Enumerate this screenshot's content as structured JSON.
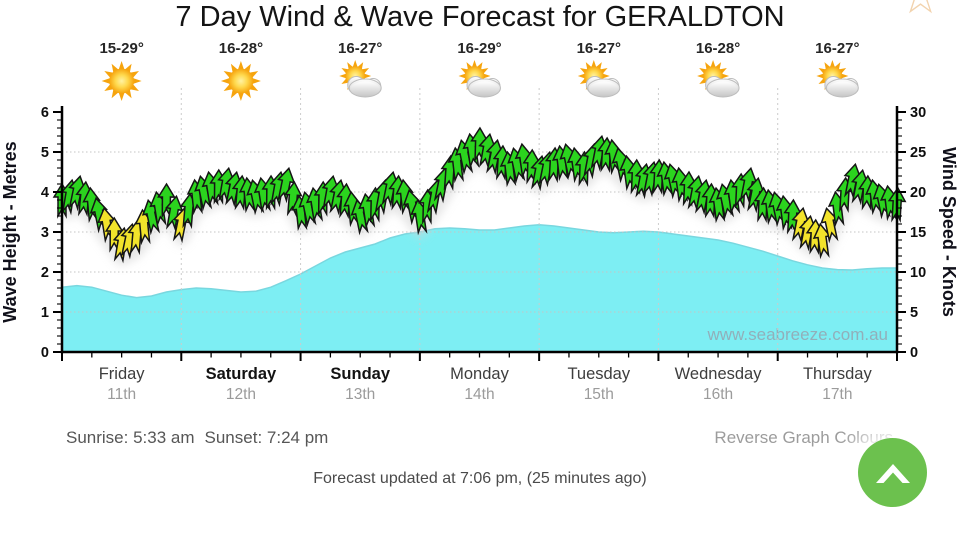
{
  "page": {
    "title": "7 Day Wind & Wave Forecast for GERALDTON",
    "sunrise": "Sunrise: 5:33 am",
    "sunset": "Sunset: 7:24 pm",
    "reverse_link": "Reverse Graph Colours",
    "updated": "Forecast updated at 7:06 pm, (25 minutes ago)",
    "watermark": "www.seabreeze.com.au",
    "star_glyph": "☆",
    "scroll_top_icon": "chevron-up-icon"
  },
  "colors": {
    "wave_fill": "#7DEEF3",
    "wave_edge": "#79D7DF",
    "wind_green": "#2BD41E",
    "wind_yellow": "#F2E32B",
    "wind_outline": "#151515",
    "arrow_shadow": "#D4D4D4",
    "button_green": "#6CC14E",
    "grid_gray": "#C4C4C4",
    "axis_black": "#000000",
    "tick_label": "#0D0D0D",
    "axis_title": "#10101A",
    "temp_text": "#262626",
    "day_regular": "#3D3D3D",
    "day_weekend": "#131313",
    "date_gray": "#9B9B9B",
    "watermark_gray": "#94A9B4",
    "sun_orange": "#F6A40E",
    "sun_yellow": "#FFD94E",
    "cloud_gray": "#C6C6C6"
  },
  "chart_data": {
    "type": "area",
    "title": "7 Day Wind & Wave Forecast for GERALDTON",
    "x_days": [
      {
        "name": "Friday",
        "date": "11th",
        "temp": "15-29°",
        "icon": "sunny",
        "weekend": false
      },
      {
        "name": "Saturday",
        "date": "12th",
        "temp": "16-28°",
        "icon": "sunny",
        "weekend": true
      },
      {
        "name": "Sunday",
        "date": "13th",
        "temp": "16-27°",
        "icon": "partly-cloudy",
        "weekend": true
      },
      {
        "name": "Monday",
        "date": "14th",
        "temp": "16-29°",
        "icon": "partly-cloudy",
        "weekend": false
      },
      {
        "name": "Tuesday",
        "date": "15th",
        "temp": "16-27°",
        "icon": "partly-cloudy",
        "weekend": false
      },
      {
        "name": "Wednesday",
        "date": "16th",
        "temp": "16-28°",
        "icon": "partly-cloudy",
        "weekend": false
      },
      {
        "name": "Thursday",
        "date": "17th",
        "temp": "16-27°",
        "icon": "partly-cloudy",
        "weekend": false
      }
    ],
    "y_left": {
      "label": "Wave Height - Metres",
      "min": 0,
      "max": 6,
      "tick_step": 1
    },
    "y_right": {
      "label": "Wind Speed - Knots",
      "min": 0,
      "max": 30,
      "tick_step": 5
    },
    "points_per_day": 8,
    "grid": true,
    "wind_low_threshold_knots": 16.5,
    "wave_height_m": [
      1.62,
      1.66,
      1.62,
      1.52,
      1.42,
      1.36,
      1.4,
      1.5,
      1.56,
      1.6,
      1.58,
      1.54,
      1.5,
      1.52,
      1.62,
      1.78,
      1.95,
      2.15,
      2.35,
      2.5,
      2.6,
      2.7,
      2.85,
      2.95,
      3.0,
      3.08,
      3.1,
      3.08,
      3.05,
      3.05,
      3.1,
      3.15,
      3.18,
      3.15,
      3.1,
      3.05,
      3.0,
      2.98,
      3.0,
      3.02,
      3.0,
      2.95,
      2.9,
      2.85,
      2.8,
      2.72,
      2.62,
      2.52,
      2.4,
      2.28,
      2.18,
      2.1,
      2.06,
      2.05,
      2.08,
      2.1,
      2.1
    ],
    "wind_speed_knots": [
      19,
      20,
      18.5,
      16,
      13.5,
      14.5,
      17,
      19,
      16,
      19.5,
      20.5,
      21,
      20,
      19.5,
      20,
      21,
      17.5,
      18.5,
      20,
      19,
      17,
      18.5,
      20.5,
      19.5,
      17,
      19.5,
      22.5,
      24.5,
      26,
      24.5,
      23,
      24,
      22.5,
      23.5,
      24,
      23,
      25,
      24.5,
      22.5,
      21.5,
      22,
      21.5,
      20.5,
      19.5,
      18.5,
      19.5,
      21,
      18.5,
      18,
      17,
      15,
      14,
      18,
      21.5,
      20,
      19,
      18.5
    ]
  }
}
